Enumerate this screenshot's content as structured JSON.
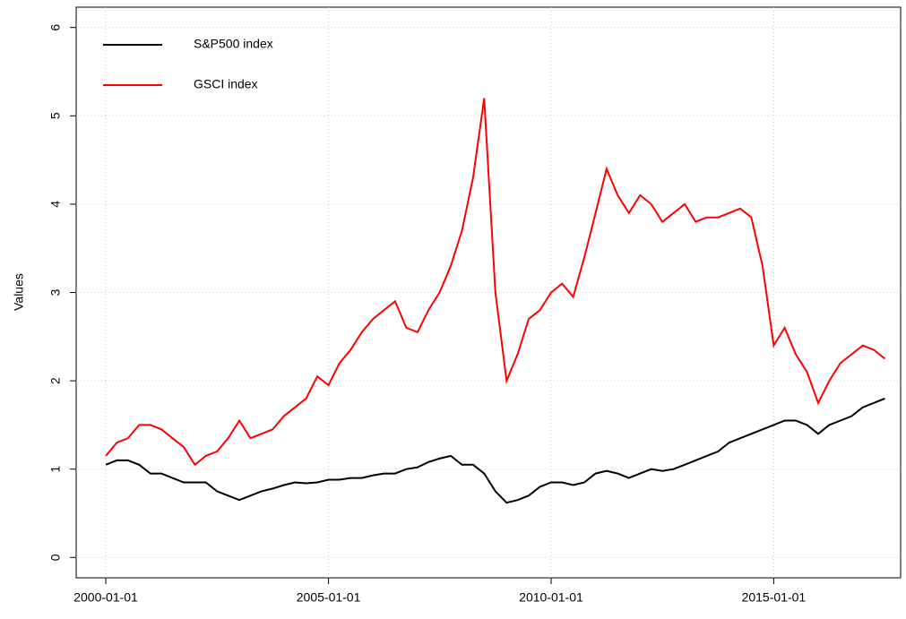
{
  "chart_data": {
    "type": "line",
    "y_label": "Values",
    "x": [
      "2000-01-01",
      "2000-04-01",
      "2000-07-01",
      "2000-10-01",
      "2001-01-01",
      "2001-04-01",
      "2001-07-01",
      "2001-10-01",
      "2002-01-01",
      "2002-04-01",
      "2002-07-01",
      "2002-10-01",
      "2003-01-01",
      "2003-04-01",
      "2003-07-01",
      "2003-10-01",
      "2004-01-01",
      "2004-04-01",
      "2004-07-01",
      "2004-10-01",
      "2005-01-01",
      "2005-04-01",
      "2005-07-01",
      "2005-10-01",
      "2006-01-01",
      "2006-04-01",
      "2006-07-01",
      "2006-10-01",
      "2007-01-01",
      "2007-04-01",
      "2007-07-01",
      "2007-10-01",
      "2008-01-01",
      "2008-04-01",
      "2008-07-01",
      "2008-10-01",
      "2009-01-01",
      "2009-04-01",
      "2009-07-01",
      "2009-10-01",
      "2010-01-01",
      "2010-04-01",
      "2010-07-01",
      "2010-10-01",
      "2011-01-01",
      "2011-04-01",
      "2011-07-01",
      "2011-10-01",
      "2012-01-01",
      "2012-04-01",
      "2012-07-01",
      "2012-10-01",
      "2013-01-01",
      "2013-04-01",
      "2013-07-01",
      "2013-10-01",
      "2014-01-01",
      "2014-04-01",
      "2014-07-01",
      "2014-10-01",
      "2015-01-01",
      "2015-04-01",
      "2015-07-01",
      "2015-10-01",
      "2016-01-01",
      "2016-04-01",
      "2016-07-01",
      "2016-10-01",
      "2017-01-01",
      "2017-04-01",
      "2017-07-01"
    ],
    "series": [
      {
        "name": "S&P500 index",
        "color": "#000000",
        "values": [
          1.05,
          1.1,
          1.1,
          1.05,
          0.95,
          0.95,
          0.9,
          0.85,
          0.85,
          0.85,
          0.75,
          0.7,
          0.65,
          0.7,
          0.75,
          0.78,
          0.82,
          0.85,
          0.84,
          0.85,
          0.88,
          0.88,
          0.9,
          0.9,
          0.93,
          0.95,
          0.95,
          1.0,
          1.02,
          1.08,
          1.12,
          1.15,
          1.05,
          1.05,
          0.95,
          0.75,
          0.62,
          0.65,
          0.7,
          0.8,
          0.85,
          0.85,
          0.82,
          0.85,
          0.95,
          0.98,
          0.95,
          0.9,
          0.95,
          1.0,
          0.98,
          1.0,
          1.05,
          1.1,
          1.15,
          1.2,
          1.3,
          1.35,
          1.4,
          1.45,
          1.5,
          1.55,
          1.55,
          1.5,
          1.4,
          1.5,
          1.55,
          1.6,
          1.7,
          1.75,
          1.8
        ]
      },
      {
        "name": "GSCI index",
        "color": "#ff0000",
        "values": [
          1.15,
          1.3,
          1.35,
          1.5,
          1.5,
          1.45,
          1.35,
          1.25,
          1.05,
          1.15,
          1.2,
          1.35,
          1.55,
          1.35,
          1.4,
          1.45,
          1.6,
          1.7,
          1.8,
          2.05,
          1.95,
          2.2,
          2.35,
          2.55,
          2.7,
          2.8,
          2.9,
          2.6,
          2.55,
          2.8,
          3.0,
          3.3,
          3.7,
          4.3,
          5.2,
          3.0,
          2.0,
          2.3,
          2.7,
          2.8,
          3.0,
          3.1,
          2.95,
          3.4,
          3.9,
          4.4,
          4.1,
          3.9,
          4.1,
          4.0,
          3.8,
          3.9,
          4.0,
          3.8,
          3.85,
          3.85,
          3.9,
          3.95,
          3.85,
          3.3,
          2.4,
          2.6,
          2.3,
          2.1,
          1.75,
          2.0,
          2.2,
          2.3,
          2.4,
          2.35,
          2.25
        ]
      }
    ],
    "xlim": [
      "1999-05-03",
      "2017-11-07"
    ],
    "xticks": [
      "2000-01-01",
      "2005-01-01",
      "2010-01-01",
      "2015-01-01"
    ],
    "ylim": [
      -0.23,
      6.23
    ],
    "yticks": [
      0,
      1,
      2,
      3,
      4,
      5,
      6
    ],
    "grid": true,
    "legend": "top-left"
  }
}
